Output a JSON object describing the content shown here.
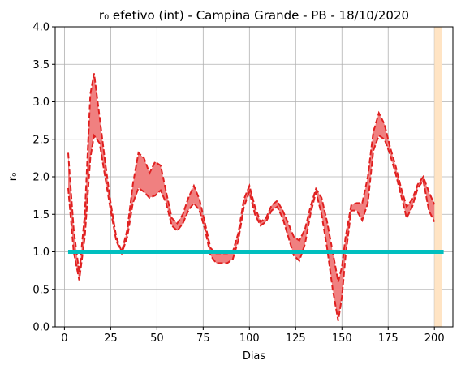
{
  "chart_data": {
    "type": "area",
    "title": "r₀ efetivo (int) - Campina Grande - PB - 18/10/2020",
    "xlabel": "Dias",
    "ylabel": "r₀",
    "xlim": [
      -5,
      210
    ],
    "ylim": [
      0,
      4.0
    ],
    "xticks": [
      0,
      25,
      50,
      75,
      100,
      125,
      150,
      175,
      200
    ],
    "yticks": [
      0.0,
      0.5,
      1.0,
      1.5,
      2.0,
      2.5,
      3.0,
      3.5,
      4.0
    ],
    "grid": true,
    "colors": {
      "band_fill": "#f08080",
      "band_edge": "#e02020",
      "threshold": "#00bfbf",
      "highlight": "#ffe4c4"
    },
    "threshold": {
      "y": 1.0,
      "x_start": 2,
      "x_end": 205
    },
    "highlight": {
      "x_start": 200,
      "x_end": 204
    },
    "x": [
      2,
      5,
      8,
      11,
      14,
      16,
      19,
      22,
      25,
      28,
      31,
      34,
      37,
      40,
      43,
      46,
      49,
      52,
      55,
      58,
      61,
      64,
      67,
      70,
      73,
      76,
      79,
      82,
      85,
      88,
      91,
      94,
      97,
      100,
      103,
      106,
      109,
      112,
      115,
      118,
      121,
      124,
      127,
      130,
      133,
      136,
      139,
      142,
      145,
      148,
      150,
      152,
      155,
      158,
      161,
      164,
      167,
      170,
      173,
      176,
      179,
      182,
      185,
      188,
      191,
      194,
      197,
      200
    ],
    "series": [
      {
        "role": "upper",
        "values": [
          2.32,
          1.3,
          0.72,
          1.5,
          3.1,
          3.38,
          2.8,
          2.2,
          1.65,
          1.2,
          1.0,
          1.3,
          1.9,
          2.32,
          2.25,
          2.05,
          2.2,
          2.15,
          1.8,
          1.45,
          1.38,
          1.5,
          1.72,
          1.88,
          1.7,
          1.38,
          1.05,
          0.98,
          0.98,
          0.98,
          1.0,
          1.25,
          1.7,
          1.88,
          1.6,
          1.4,
          1.45,
          1.62,
          1.68,
          1.55,
          1.38,
          1.2,
          1.15,
          1.3,
          1.6,
          1.84,
          1.72,
          1.4,
          1.0,
          0.6,
          0.8,
          1.2,
          1.62,
          1.65,
          1.65,
          2.0,
          2.6,
          2.85,
          2.7,
          2.4,
          2.15,
          1.85,
          1.6,
          1.7,
          1.9,
          2.0,
          1.8,
          1.63
        ]
      },
      {
        "role": "lower",
        "values": [
          1.85,
          1.0,
          0.62,
          1.2,
          2.25,
          2.55,
          2.45,
          2.0,
          1.55,
          1.15,
          0.98,
          1.2,
          1.65,
          1.85,
          1.8,
          1.72,
          1.75,
          1.82,
          1.65,
          1.35,
          1.28,
          1.38,
          1.55,
          1.65,
          1.55,
          1.3,
          0.95,
          0.85,
          0.85,
          0.85,
          0.9,
          1.15,
          1.6,
          1.8,
          1.5,
          1.35,
          1.4,
          1.55,
          1.6,
          1.45,
          1.2,
          0.95,
          0.88,
          1.1,
          1.5,
          1.8,
          1.5,
          1.05,
          0.5,
          0.08,
          0.4,
          0.95,
          1.55,
          1.55,
          1.42,
          1.65,
          2.35,
          2.55,
          2.5,
          2.3,
          2.05,
          1.75,
          1.45,
          1.6,
          1.85,
          1.95,
          1.55,
          1.4
        ]
      }
    ]
  }
}
